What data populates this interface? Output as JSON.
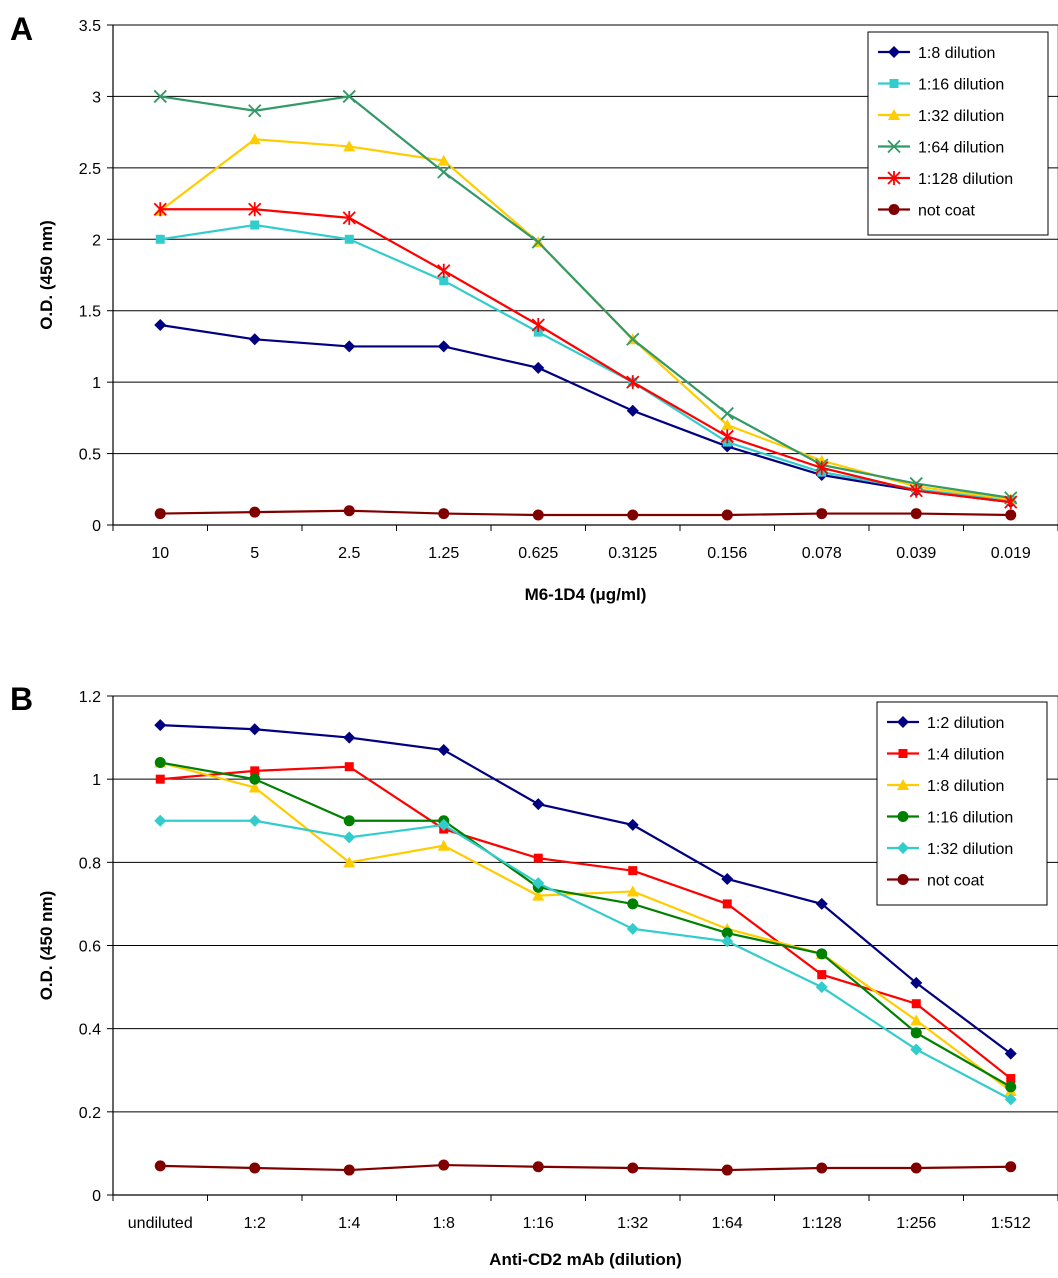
{
  "chart_data": [
    {
      "panel_label": "A",
      "type": "line",
      "xlabel": "M6-1D4 (μg/ml)",
      "ylabel": "O.D. (450 nm)",
      "ylim": [
        0,
        3.5
      ],
      "yticks": [
        "0",
        "0.5",
        "1",
        "1.5",
        "2",
        "2.5",
        "3",
        "3.5"
      ],
      "categories": [
        "10",
        "5",
        "2.5",
        "1.25",
        "0.625",
        "0.3125",
        "0.156",
        "0.078",
        "0.039",
        "0.019"
      ],
      "grid": "horizontal",
      "legend_position": "top-right",
      "series": [
        {
          "name": "1:8 dilution",
          "color": "#000080",
          "marker": "diamond",
          "values": [
            1.4,
            1.3,
            1.25,
            1.25,
            1.1,
            0.8,
            0.55,
            0.35,
            0.24,
            0.16
          ]
        },
        {
          "name": "1:16 dilution",
          "color": "#33CCCC",
          "marker": "square",
          "values": [
            2.0,
            2.1,
            2.0,
            1.71,
            1.35,
            1.0,
            0.58,
            0.37,
            0.25,
            0.17
          ]
        },
        {
          "name": "1:32 dilution",
          "color": "#FFCC00",
          "marker": "triangle",
          "values": [
            2.2,
            2.7,
            2.65,
            2.55,
            1.98,
            1.3,
            0.7,
            0.45,
            0.27,
            0.18
          ]
        },
        {
          "name": "1:64 dilution",
          "color": "#339966",
          "marker": "x",
          "values": [
            3.0,
            2.9,
            3.0,
            2.47,
            1.98,
            1.3,
            0.78,
            0.42,
            0.29,
            0.19
          ]
        },
        {
          "name": "1:128 dilution",
          "color": "#FF0000",
          "marker": "star",
          "values": [
            2.21,
            2.21,
            2.15,
            1.78,
            1.4,
            1.0,
            0.62,
            0.4,
            0.24,
            0.16
          ]
        },
        {
          "name": "not coat",
          "color": "#800000",
          "marker": "circle",
          "values": [
            0.08,
            0.09,
            0.1,
            0.08,
            0.07,
            0.07,
            0.07,
            0.08,
            0.08,
            0.07
          ]
        }
      ]
    },
    {
      "panel_label": "B",
      "type": "line",
      "xlabel": "Anti-CD2 mAb (dilution)",
      "ylabel": "O.D. (450 nm)",
      "ylim": [
        0,
        1.2
      ],
      "yticks": [
        "0",
        "0.2",
        "0.4",
        "0.6",
        "0.8",
        "1",
        "1.2"
      ],
      "categories": [
        "undiluted",
        "1:2",
        "1:4",
        "1:8",
        "1:16",
        "1:32",
        "1:64",
        "1:128",
        "1:256",
        "1:512"
      ],
      "grid": "horizontal",
      "legend_position": "top-right",
      "series": [
        {
          "name": "1:2 dilution",
          "color": "#000080",
          "marker": "diamond",
          "values": [
            1.13,
            1.12,
            1.1,
            1.07,
            0.94,
            0.89,
            0.76,
            0.7,
            0.51,
            0.34
          ]
        },
        {
          "name": "1:4 dilution",
          "color": "#FF0000",
          "marker": "square",
          "values": [
            1.0,
            1.02,
            1.03,
            0.88,
            0.81,
            0.78,
            0.7,
            0.53,
            0.46,
            0.28
          ]
        },
        {
          "name": "1:8 dilution",
          "color": "#FFCC00",
          "marker": "triangle",
          "values": [
            1.04,
            0.98,
            0.8,
            0.84,
            0.72,
            0.73,
            0.64,
            0.58,
            0.42,
            0.25
          ]
        },
        {
          "name": "1:16 dilution",
          "color": "#008000",
          "marker": "circle",
          "values": [
            1.04,
            1.0,
            0.9,
            0.9,
            0.74,
            0.7,
            0.63,
            0.58,
            0.39,
            0.26
          ]
        },
        {
          "name": "1:32 dilution",
          "color": "#33CCCC",
          "marker": "diamond",
          "values": [
            0.9,
            0.9,
            0.86,
            0.89,
            0.75,
            0.64,
            0.61,
            0.5,
            0.35,
            0.23
          ]
        },
        {
          "name": "not coat",
          "color": "#800000",
          "marker": "circle",
          "values": [
            0.07,
            0.065,
            0.06,
            0.072,
            0.068,
            0.065,
            0.06,
            0.065,
            0.065,
            0.068
          ]
        }
      ]
    }
  ]
}
